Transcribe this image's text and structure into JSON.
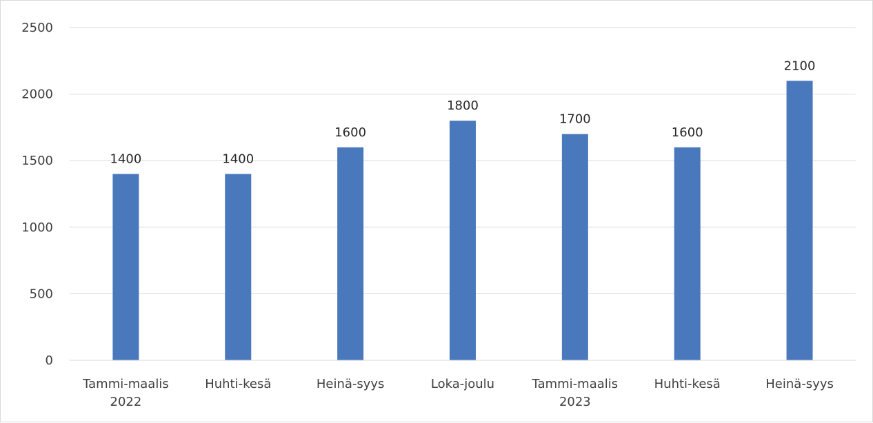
{
  "chart_data": {
    "type": "bar",
    "categories": [
      [
        "Tammi-maalis",
        "2022"
      ],
      [
        "Huhti-kesä"
      ],
      [
        "Heinä-syys"
      ],
      [
        "Loka-joulu"
      ],
      [
        "Tammi-maalis",
        "2023"
      ],
      [
        "Huhti-kesä"
      ],
      [
        "Heinä-syys"
      ]
    ],
    "values": [
      1400,
      1400,
      1600,
      1800,
      1700,
      1600,
      2100
    ],
    "data_labels": [
      "1400",
      "1400",
      "1600",
      "1800",
      "1700",
      "1600",
      "2100"
    ],
    "y_ticks": [
      0,
      500,
      1000,
      1500,
      2000,
      2500
    ],
    "ylim": [
      0,
      2500
    ],
    "grid": true,
    "legend": false,
    "bar_color": "#4a78bd",
    "grid_color": "#d9d9d9"
  }
}
